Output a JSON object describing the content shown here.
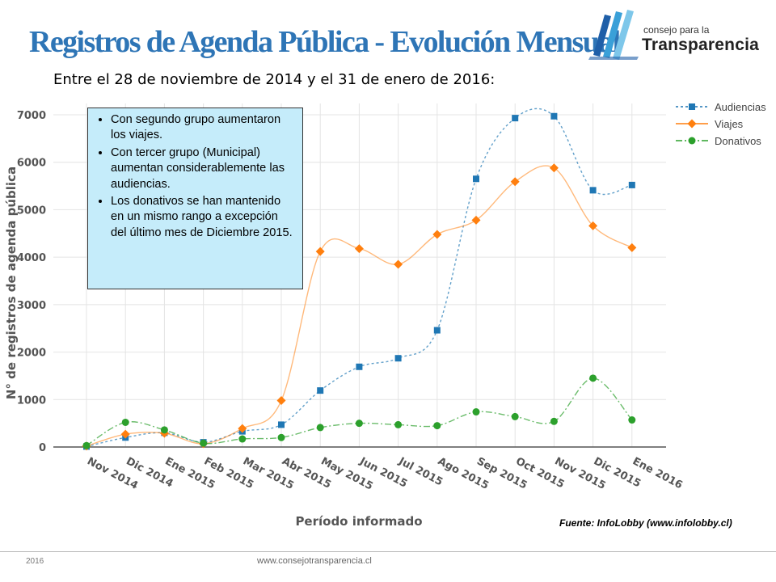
{
  "slide": {
    "title": "Registros de Agenda Pública - Evolución Mensual",
    "subtitle": "Entre el 28 de noviembre de 2014 y el 31 de enero de 2016:",
    "source": "Fuente: InfoLobby (www.infolobby.cl)",
    "footer_year": "2016",
    "footer_url": "www.consejotransparencia.cl"
  },
  "logo": {
    "line1": "consejo para la",
    "line2": "Transparencia"
  },
  "annotation": {
    "bullets": [
      "Con segundo grupo aumentaron los viajes.",
      "Con tercer grupo (Municipal) aumentan considerablemente las audiencias.",
      "Los donativos se han mantenido en un mismo rango a excepción del último mes de Diciembre 2015."
    ]
  },
  "chart_data": {
    "type": "line",
    "xlabel": "Período informado",
    "ylabel": "N° de registros de agenda pública",
    "ylim": [
      0,
      7000
    ],
    "yticks": [
      0,
      1000,
      2000,
      3000,
      4000,
      5000,
      6000,
      7000
    ],
    "grid": true,
    "legend": "top-right",
    "categories": [
      "Nov 2014",
      "Dic 2014",
      "Ene 2015",
      "Feb 2015",
      "Mar 2015",
      "Abr 2015",
      "May 2015",
      "Jun 2015",
      "Jul 2015",
      "Ago 2015",
      "Sep 2015",
      "Oct 2015",
      "Nov 2015",
      "Dic 2015",
      "Ene 2016"
    ],
    "series": [
      {
        "name": "Audiencias",
        "color": "#1f77b4",
        "marker": "square",
        "dash": "dot",
        "values": [
          10,
          200,
          300,
          100,
          330,
          470,
          1190,
          1690,
          1870,
          2460,
          5650,
          6930,
          6970,
          5410,
          5520
        ]
      },
      {
        "name": "Viajes",
        "color": "#ff7f0e",
        "marker": "diamond",
        "dash": "solid",
        "values": [
          20,
          270,
          290,
          70,
          390,
          980,
          4120,
          4180,
          3850,
          4480,
          4780,
          5590,
          5880,
          4660,
          4200
        ]
      },
      {
        "name": "Donativos",
        "color": "#2ca02c",
        "marker": "circle",
        "dash": "dashdot",
        "values": [
          30,
          520,
          360,
          80,
          170,
          200,
          410,
          500,
          470,
          450,
          740,
          640,
          540,
          1450,
          570
        ]
      }
    ]
  }
}
